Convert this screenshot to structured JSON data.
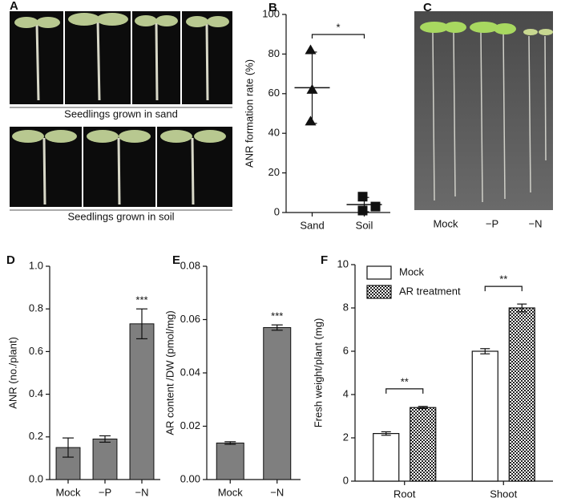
{
  "photo_panels": [
    {
      "panel": "A",
      "captions": [
        "Seedlings grown in sand",
        "Seedlings grown in soil"
      ]
    },
    {
      "panel": "C",
      "labels": [
        "Mock",
        "−P",
        "−N"
      ]
    }
  ],
  "chart_data": [
    {
      "type": "scatter",
      "panel": "B",
      "ylabel": "ANR formation rate (%)",
      "categories": [
        "Sand",
        "Soil"
      ],
      "points": [
        [
          82,
          62,
          46
        ],
        [
          8,
          3,
          1
        ]
      ],
      "markers": [
        "triangle",
        "square"
      ],
      "means": [
        63,
        4
      ],
      "errors": [
        18,
        3.6
      ],
      "significance": "*",
      "color": "#111111",
      "ylim": [
        0,
        100
      ],
      "yticks": [
        0,
        20,
        40,
        60,
        80,
        100
      ]
    },
    {
      "type": "bar",
      "panel": "D",
      "ylabel": "ANR (no./plant)",
      "categories": [
        "Mock",
        "−P",
        "−N"
      ],
      "values": [
        0.15,
        0.19,
        0.73
      ],
      "errors": [
        0.045,
        0.015,
        0.07
      ],
      "significance": [
        null,
        null,
        "***"
      ],
      "color": "#7f7f7f",
      "ylim": [
        0,
        1.0
      ],
      "yticks": [
        {
          "value": 0,
          "label": "0.0"
        },
        0.2,
        0.4,
        0.6,
        0.8,
        {
          "value": 1.0,
          "label": "1.0"
        }
      ]
    },
    {
      "type": "bar",
      "panel": "E",
      "ylabel": "AR content /DW (pmol/mg)",
      "categories": [
        "Mock",
        "−N"
      ],
      "values": [
        0.0137,
        0.057
      ],
      "errors": [
        0.0005,
        0.001
      ],
      "significance": [
        null,
        "***"
      ],
      "color": "#7f7f7f",
      "ylim": [
        0,
        0.08
      ],
      "yticks": [
        {
          "value": 0,
          "label": "0.00"
        },
        {
          "value": 0.02,
          "label": "0.02"
        },
        {
          "value": 0.04,
          "label": "0.04"
        },
        {
          "value": 0.06,
          "label": "0.06"
        },
        {
          "value": 0.08,
          "label": "0.08"
        }
      ]
    },
    {
      "type": "grouped_bar",
      "panel": "F",
      "ylabel": "Fresh weight/plant (mg)",
      "categories": [
        "Root",
        "Shoot"
      ],
      "legend": "top-left",
      "series": [
        {
          "name": "Mock",
          "color": "#ffffff",
          "values": [
            2.2,
            6.0
          ],
          "errors": [
            0.08,
            0.12
          ]
        },
        {
          "name": "AR treatment",
          "color": "checker",
          "values": [
            3.4,
            8.0
          ],
          "errors": [
            0.05,
            0.18
          ]
        }
      ],
      "significance": [
        "**",
        "**"
      ],
      "ylim": [
        0,
        10
      ],
      "yticks": [
        0,
        2,
        4,
        6,
        8,
        10
      ]
    }
  ]
}
